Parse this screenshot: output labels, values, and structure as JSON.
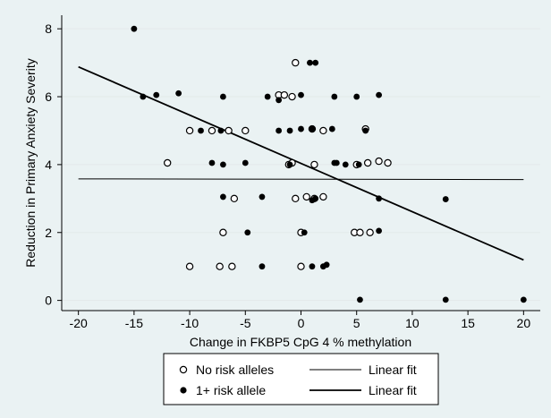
{
  "chart_data": {
    "type": "scatter",
    "xlabel": "Change in FKBP5 CpG 4 % methylation",
    "ylabel": "Reduction in Primary Anxiety Severity",
    "xlim": [
      -21.5,
      21.5
    ],
    "ylim": [
      -0.3,
      8.4
    ],
    "xticks": [
      -20,
      -15,
      -10,
      -5,
      0,
      5,
      10,
      15,
      20
    ],
    "yticks": [
      0,
      2,
      4,
      6,
      8
    ],
    "xtick_labels": [
      "-20",
      "-15",
      "-10",
      "-5",
      "0",
      "5",
      "10",
      "15",
      "20"
    ],
    "ytick_labels": [
      "0",
      "2",
      "4",
      "6",
      "8"
    ],
    "grid": "horizontal",
    "legend_position": "bottom",
    "series": [
      {
        "name": "No risk alleles",
        "marker": "hollow-circle",
        "points": [
          [
            -0.5,
            7.0
          ],
          [
            -2,
            6.05
          ],
          [
            -1.5,
            6.05
          ],
          [
            -0.8,
            6.0
          ],
          [
            -10,
            5.0
          ],
          [
            -8,
            5.0
          ],
          [
            -6.5,
            5.0
          ],
          [
            -5,
            5.0
          ],
          [
            1,
            5.05
          ],
          [
            2,
            5.0
          ],
          [
            5.8,
            5.05
          ],
          [
            -12,
            4.05
          ],
          [
            -1.1,
            4.0
          ],
          [
            -0.8,
            4.05
          ],
          [
            1.2,
            4.0
          ],
          [
            5,
            4.0
          ],
          [
            6,
            4.05
          ],
          [
            7,
            4.1
          ],
          [
            7.8,
            4.05
          ],
          [
            -6,
            3.0
          ],
          [
            -0.5,
            3.0
          ],
          [
            0.5,
            3.05
          ],
          [
            1.2,
            3.0
          ],
          [
            2,
            3.05
          ],
          [
            -7,
            2.0
          ],
          [
            0,
            2.0
          ],
          [
            4.8,
            2.0
          ],
          [
            5.3,
            2.0
          ],
          [
            6.2,
            2.0
          ],
          [
            -10,
            1.0
          ],
          [
            -7.3,
            1.0
          ],
          [
            -6.2,
            1.0
          ],
          [
            0,
            1.0
          ]
        ]
      },
      {
        "name": "1+ risk allele",
        "marker": "filled-circle",
        "points": [
          [
            -15,
            8.0
          ],
          [
            0.8,
            7.0
          ],
          [
            1.3,
            7.0
          ],
          [
            -14.2,
            6.0
          ],
          [
            -13,
            6.05
          ],
          [
            -11,
            6.1
          ],
          [
            -7,
            6.0
          ],
          [
            -3,
            6.0
          ],
          [
            -2,
            5.9
          ],
          [
            0,
            6.05
          ],
          [
            3,
            6.0
          ],
          [
            5,
            6.0
          ],
          [
            7,
            6.05
          ],
          [
            -9,
            5.0
          ],
          [
            -7.2,
            5.0
          ],
          [
            -2,
            5.0
          ],
          [
            -1,
            5.0
          ],
          [
            0,
            5.05
          ],
          [
            1,
            5.05
          ],
          [
            2.8,
            5.05
          ],
          [
            5.8,
            5.0
          ],
          [
            -8,
            4.05
          ],
          [
            -7,
            4.0
          ],
          [
            -5,
            4.05
          ],
          [
            -1,
            4.0
          ],
          [
            3,
            4.05
          ],
          [
            3.2,
            4.05
          ],
          [
            4,
            4.0
          ],
          [
            5.2,
            4.0
          ],
          [
            -7,
            3.05
          ],
          [
            -3.5,
            3.05
          ],
          [
            1,
            2.95
          ],
          [
            1.3,
            3.0
          ],
          [
            7,
            3.0
          ],
          [
            13,
            2.98
          ],
          [
            -4.8,
            2.0
          ],
          [
            0.3,
            2.0
          ],
          [
            7,
            2.05
          ],
          [
            -3.5,
            1.0
          ],
          [
            1,
            1.0
          ],
          [
            2,
            1.0
          ],
          [
            2.3,
            1.05
          ],
          [
            5.3,
            0.02
          ],
          [
            13,
            0.02
          ],
          [
            20,
            0.02
          ]
        ]
      }
    ],
    "fits": [
      {
        "name": "Linear fit",
        "x": [
          -20,
          20
        ],
        "y": [
          3.58,
          3.56
        ],
        "weight": "thin"
      },
      {
        "name": "Linear fit",
        "x": [
          -20,
          20
        ],
        "y": [
          6.88,
          1.19
        ],
        "weight": "thick"
      }
    ],
    "legend": {
      "entries": [
        {
          "marker": "hollow-circle",
          "label": "No risk alleles"
        },
        {
          "line": "thin",
          "label": "Linear fit"
        },
        {
          "marker": "filled-circle",
          "label": "1+ risk allele"
        },
        {
          "line": "thick",
          "label": "Linear fit"
        }
      ]
    }
  }
}
